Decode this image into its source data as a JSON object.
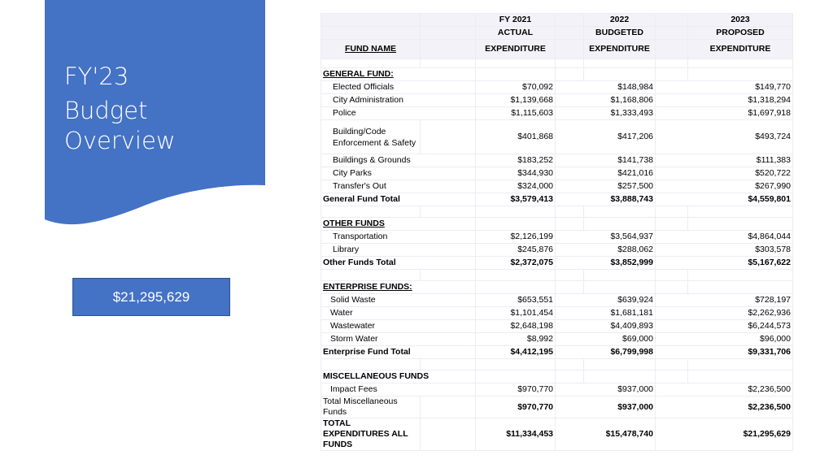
{
  "slide": {
    "title_line1": "FY'23",
    "title_line2": "Budget",
    "title_line3": "Overview",
    "total_box": "$21,295,629",
    "accent_color": "#4472c4"
  },
  "table": {
    "headers": {
      "row1": [
        "FY 2021",
        "2022",
        "2023"
      ],
      "row2": [
        "ACTUAL",
        "BUDGETED",
        "PROPOSED"
      ],
      "fund_name": "FUND NAME",
      "row3": [
        "EXPENDITURE",
        "EXPENDITURE",
        "EXPENDITURE"
      ]
    },
    "general_fund": {
      "heading": "GENERAL FUND:",
      "rows": [
        {
          "name": "Elected Officials",
          "fy2021": "$70,092",
          "fy2022": "$148,984",
          "fy2023": "$149,770"
        },
        {
          "name": "City Administration",
          "fy2021": "$1,139,668",
          "fy2022": "$1,168,806",
          "fy2023": "$1,318,294"
        },
        {
          "name": "Police",
          "fy2021": "$1,115,603",
          "fy2022": "$1,333,493",
          "fy2023": "$1,697,918"
        },
        {
          "name": "Building/Code Enforcement & Safety",
          "fy2021": "$401,868",
          "fy2022": "$417,206",
          "fy2023": "$493,724"
        },
        {
          "name": "Buildings & Grounds",
          "fy2021": "$183,252",
          "fy2022": "$141,738",
          "fy2023": "$111,383"
        },
        {
          "name": "City Parks",
          "fy2021": "$344,930",
          "fy2022": "$421,016",
          "fy2023": "$520,722"
        },
        {
          "name": "Transfer's Out",
          "fy2021": "$324,000",
          "fy2022": "$257,500",
          "fy2023": "$267,990"
        }
      ],
      "total": {
        "name": "General Fund Total",
        "fy2021": "$3,579,413",
        "fy2022": "$3,888,743",
        "fy2023": "$4,559,801"
      }
    },
    "other_funds": {
      "heading": "OTHER FUNDS",
      "rows": [
        {
          "name": "Transportation",
          "fy2021": "$2,126,199",
          "fy2022": "$3,564,937",
          "fy2023": "$4,864,044"
        },
        {
          "name": "Library",
          "fy2021": "$245,876",
          "fy2022": "$288,062",
          "fy2023": "$303,578"
        }
      ],
      "total": {
        "name": "Other Funds Total",
        "fy2021": "$2,372,075",
        "fy2022": "$3,852,999",
        "fy2023": "$5,167,622"
      }
    },
    "enterprise_funds": {
      "heading": "ENTERPRISE FUNDS:",
      "rows": [
        {
          "name": "Solid Waste",
          "fy2021": "$653,551",
          "fy2022": "$639,924",
          "fy2023": "$728,197"
        },
        {
          "name": "Water",
          "fy2021": "$1,101,454",
          "fy2022": "$1,681,181",
          "fy2023": "$2,262,936"
        },
        {
          "name": "Wastewater",
          "fy2021": "$2,648,198",
          "fy2022": "$4,409,893",
          "fy2023": "$6,244,573"
        },
        {
          "name": "Storm Water",
          "fy2021": "$8,992",
          "fy2022": "$69,000",
          "fy2023": "$96,000"
        }
      ],
      "total": {
        "name": "Enterprise Fund Total",
        "fy2021": "$4,412,195",
        "fy2022": "$6,799,998",
        "fy2023": "$9,331,706"
      }
    },
    "misc_funds": {
      "heading": "MISCELLANEOUS FUNDS",
      "rows": [
        {
          "name": "Impact Fees",
          "fy2021": "$970,770",
          "fy2022": "$937,000",
          "fy2023": "$2,236,500"
        }
      ],
      "total": {
        "name": "Total Miscellaneous Funds",
        "fy2021": "$970,770",
        "fy2022": "$937,000",
        "fy2023": "$2,236,500"
      }
    },
    "grand_total": {
      "name": "TOTAL EXPENDITURES ALL FUNDS",
      "fy2021": "$11,334,453",
      "fy2022": "$15,478,740",
      "fy2023": "$21,295,629"
    }
  }
}
